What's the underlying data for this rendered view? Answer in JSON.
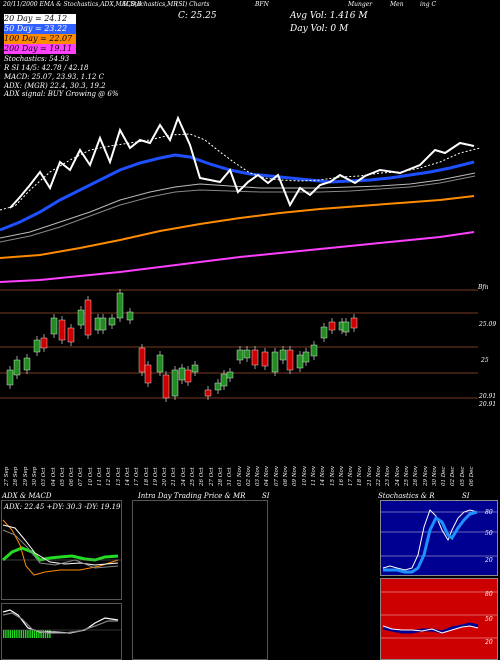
{
  "header": {
    "line1": [
      "20/11/2000 EMA & Stochastics,ADX,MACD,B",
      "SI,Stochastics,MR",
      "(SI) Charts",
      "BFN",
      "Munger",
      "Men",
      "ing C"
    ],
    "price_label": "C: 25.25",
    "avg_vol": "Avg Vol: 1.416   M",
    "day_vol": "Day Vol: 0   M",
    "ema_lines": [
      {
        "label": "20   Day = 24.12",
        "color": "#ffffff"
      },
      {
        "label": "50   Day = 23.22",
        "color": "#3060ff"
      },
      {
        "label": "100  Day = 22.07",
        "color": "#ff8c00"
      },
      {
        "label": "200  Day = 19.11",
        "color": "#ff40ff"
      }
    ],
    "stoch_line": "Stochastics: 54.93",
    "rsi_line": "R           SI 14/5: 42.78  / 42.18",
    "macd_line": "MACD: 25.07, 23.93, 1.12  C",
    "adx_line": "ADX:                        (MGR) 22.4,  30.3,  19.2",
    "adx_signal_line": "ADX   signal:                    BUY Growing @ 6%"
  },
  "price_axis": {
    "top_label": "Bfn",
    "levels": [
      "25.09",
      "25",
      "20.91",
      "20.91"
    ]
  },
  "dates": [
    "27 Sep",
    "28 Sep",
    "29 Sep",
    "30 Sep",
    "03 Oct",
    "04 Oct",
    "05 Oct",
    "06 Oct",
    "07 Oct",
    "10 Oct",
    "11 Oct",
    "12 Oct",
    "13 Oct",
    "14 Oct",
    "17 Oct",
    "18 Oct",
    "19 Oct",
    "20 Oct",
    "21 Oct",
    "24 Oct",
    "25 Oct",
    "26 Oct",
    "27 Oct",
    "28 Oct",
    "31 Oct",
    "01 Nov",
    "02 Nov",
    "03 Nov",
    "04 Nov",
    "07 Nov",
    "08 Nov",
    "09 Nov",
    "10 Nov",
    "11 Nov",
    "14 Nov",
    "15 Nov",
    "16 Nov",
    "17 Nov",
    "18 Nov",
    "21 Nov",
    "22 Nov",
    "23 Nov",
    "24 Nov",
    "25 Nov",
    "28 Nov",
    "29 Nov",
    "30 Nov",
    "01 Dec",
    "02 Dec",
    "05 Dec",
    "06 Dec"
  ],
  "bottom_panels": {
    "adx_title": "ADX  & MACD",
    "adx_readout": "ADX: 22.45  +DY: 30.3  -DY: 19.19",
    "intraday_title": "Intra  Day Trading Price  & MR",
    "intraday_si": "SI",
    "stoch_title": "Stochastics & R",
    "stoch_si": "SI",
    "stoch_levels": [
      "80",
      "50",
      "20"
    ],
    "rsi_levels": [
      "80",
      "50",
      "20"
    ],
    "stoch_value": "55",
    "rsi_value": "43",
    "macd_readout": "1.12"
  },
  "colors": {
    "ema20": "#ffffff",
    "ema50": "#1e50ff",
    "ema100": "#ff8c00",
    "ema200": "#ff40ff",
    "candle_up": "#228b22",
    "candle_down": "#cc0000",
    "grid": "#a0522d",
    "stoch_bg": "#000090",
    "rsi_bg": "#cc0000",
    "adx_green": "#22dd22",
    "adx_orange": "#ff8c00"
  }
}
